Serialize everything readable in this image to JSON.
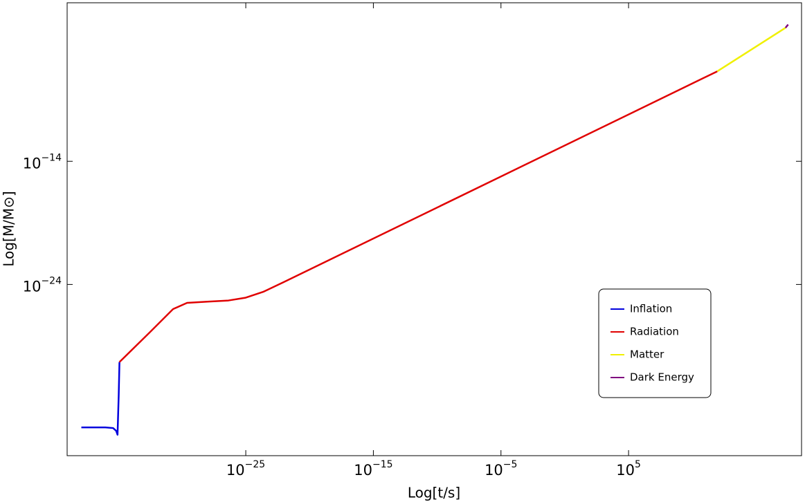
{
  "chart_data": {
    "type": "line",
    "xlabel": "Log[t/s]",
    "ylabel": "Log[M/M⊙]",
    "xscale": "log",
    "yscale": "log",
    "xlim": [
      1e-39,
      3.6e+18
    ],
    "ylim": [
      1.26e-38,
      0.074
    ],
    "xticks": [
      {
        "value": 1e-25,
        "label": "10−25"
      },
      {
        "value": 1e-15,
        "label": "10−15"
      },
      {
        "value": 1e-05,
        "label": "10−5"
      },
      {
        "value": 100000.0,
        "label": "105"
      }
    ],
    "yticks": [
      {
        "value": 1e-24,
        "label": "10−24"
      },
      {
        "value": 1e-14,
        "label": "10−14"
      }
    ],
    "series": [
      {
        "name": "Inflation",
        "color": "#0000dd",
        "x": [
          1.3e-38,
          1e-36,
          4e-36,
          7e-36,
          8.9e-36,
          1.1e-35,
          1.26e-35
        ],
        "values": [
          2.5e-36,
          2.5e-36,
          2.2e-36,
          1.3e-36,
          6.3e-37,
          1e-33,
          5e-31
        ]
      },
      {
        "name": "Radiation",
        "color": "#e00000",
        "x": [
          1.26e-35,
          2.9e-33,
          2e-31,
          2.5e-30,
          1e-28,
          4.4e-27,
          1e-25,
          2.3e-24,
          1e-22,
          890000000000.0
        ],
        "values": [
          5e-31,
          1.26e-28,
          1e-26,
          3.2e-26,
          4e-26,
          5e-26,
          8.5e-26,
          2.5e-25,
          1.6e-24,
          2e-07
        ]
      },
      {
        "name": "Matter",
        "color": "#f0f000",
        "x": [
          890000000000.0,
          2e+17
        ],
        "values": [
          2e-07,
          0.00069
        ]
      },
      {
        "name": "Dark Energy",
        "color": "#800080",
        "x": [
          2e+17,
          3.2e+17
        ],
        "values": [
          0.00069,
          0.00126
        ]
      }
    ]
  }
}
